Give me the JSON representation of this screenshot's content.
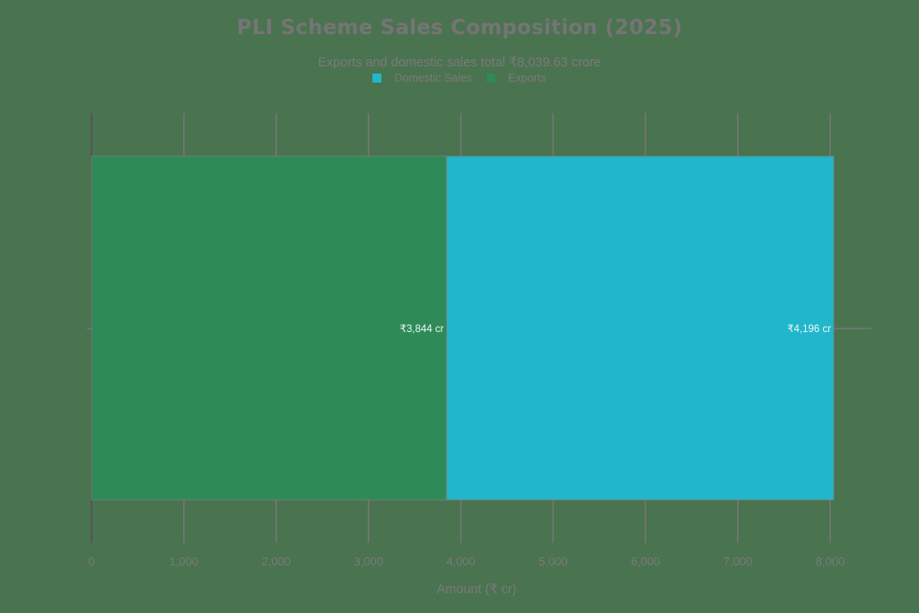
{
  "chart_data": {
    "type": "bar",
    "orientation": "horizontal",
    "stacked": true,
    "title": "PLI Scheme Sales Composition (2025)",
    "subtitle": "Exports and domestic sales total ₹8,039.63 crore",
    "xlabel": "Amount (₹ cr)",
    "ylabel": "",
    "categories": [
      ""
    ],
    "series": [
      {
        "name": "Exports",
        "values": [
          3844
        ],
        "color": "#2e8a57",
        "label": "₹3,844 cr"
      },
      {
        "name": "Domestic Sales",
        "values": [
          4196
        ],
        "color": "#20b7cc",
        "label": "₹4,196 cr"
      }
    ],
    "xlim": [
      0,
      8000
    ],
    "xticks": [
      0,
      1000,
      2000,
      3000,
      4000,
      5000,
      6000,
      7000,
      8000
    ],
    "xtick_labels": [
      "0",
      "1,000",
      "2,000",
      "3,000",
      "4,000",
      "5,000",
      "6,000",
      "7,000",
      "8,000"
    ],
    "grid": true,
    "legend": {
      "position": "top-center",
      "entries": [
        {
          "name": "Domestic Sales",
          "color": "#20b7cc"
        },
        {
          "name": "Exports",
          "color": "#2e8a57"
        }
      ]
    }
  },
  "header": {
    "title": "PLI Scheme Sales Composition (2025)",
    "subtitle": "Exports and domestic sales total ₹8,039.63 crore"
  },
  "legend": {
    "items": [
      {
        "label": "Domestic Sales",
        "color": "#20b7cc"
      },
      {
        "label": "Exports",
        "color": "#2e8a57"
      }
    ]
  },
  "axis": {
    "x_title": "Amount (₹ cr)",
    "ticks": [
      "0",
      "1,000",
      "2,000",
      "3,000",
      "4,000",
      "5,000",
      "6,000",
      "7,000",
      "8,000"
    ]
  },
  "bars": {
    "exports_label": "₹3,844 cr",
    "domestic_label": "₹4,196 cr"
  }
}
